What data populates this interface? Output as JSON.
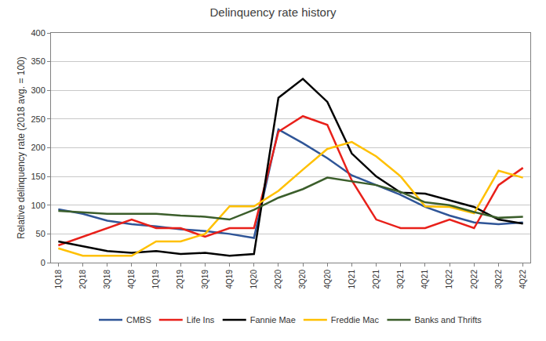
{
  "chart_data": {
    "type": "line",
    "title": "Delinquency rate history",
    "y_label": "Relative delinquency rate (2018 avg. = 100)",
    "categories": [
      "1Q18",
      "2Q18",
      "3Q18",
      "4Q18",
      "1Q19",
      "2Q19",
      "3Q19",
      "4Q19",
      "1Q20",
      "2Q20",
      "3Q20",
      "4Q20",
      "1Q21",
      "2Q21",
      "3Q21",
      "4Q21",
      "1Q22",
      "2Q22",
      "3Q22",
      "4Q22"
    ],
    "series": [
      {
        "name": "CMBS",
        "color": "#2f5597",
        "values": [
          93,
          85,
          73,
          67,
          63,
          58,
          55,
          50,
          43,
          232,
          208,
          182,
          152,
          135,
          118,
          97,
          82,
          70,
          67,
          70
        ]
      },
      {
        "name": "Life Ins",
        "color": "#e8201a",
        "values": [
          30,
          45,
          60,
          75,
          60,
          60,
          45,
          60,
          60,
          228,
          255,
          240,
          143,
          75,
          60,
          60,
          75,
          60,
          135,
          165
        ]
      },
      {
        "name": "Fannie Mae",
        "color": "#000000",
        "values": [
          37,
          28,
          20,
          17,
          20,
          15,
          17,
          12,
          15,
          287,
          320,
          280,
          190,
          150,
          122,
          120,
          108,
          97,
          75,
          68
        ]
      },
      {
        "name": "Freddie Mac",
        "color": "#ffc000",
        "values": [
          25,
          12,
          12,
          12,
          37,
          37,
          50,
          98,
          98,
          125,
          162,
          198,
          210,
          185,
          150,
          98,
          97,
          86,
          160,
          148
        ]
      },
      {
        "name": "Banks and Thrifts",
        "color": "#3b5e2b",
        "values": [
          90,
          87,
          85,
          85,
          85,
          82,
          80,
          75,
          92,
          113,
          128,
          148,
          142,
          135,
          123,
          105,
          100,
          88,
          78,
          80
        ]
      }
    ],
    "ylim": [
      0,
      400
    ],
    "yticks": [
      0,
      50,
      100,
      150,
      200,
      250,
      300,
      350,
      400
    ],
    "grid": true,
    "legend": "bottom"
  }
}
